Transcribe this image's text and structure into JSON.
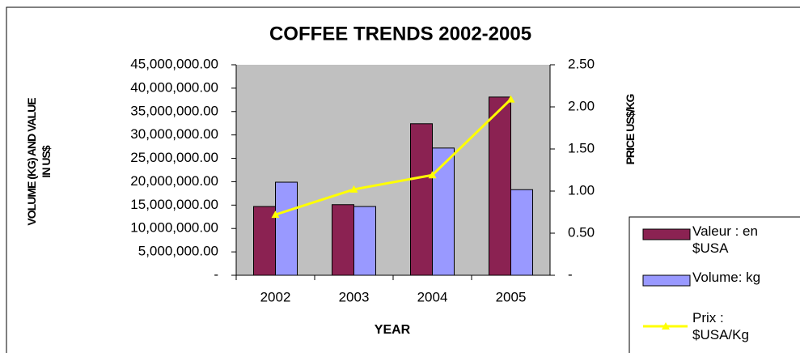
{
  "chart_data": {
    "type": "bar",
    "title": "COFFEE TRENDS 2002-2005",
    "x_label": "YEAR",
    "y_label": "VOLUME (KG) AND VALUE IN US$",
    "y2_label": "PRICE US$/KG",
    "categories": [
      "2002",
      "2003",
      "2004",
      "2005"
    ],
    "series": [
      {
        "name": "Valeur : en $USA",
        "type": "bar",
        "color": "#8b2252",
        "values": [
          14700000,
          15100000,
          32400000,
          38100000
        ]
      },
      {
        "name": "Volume: kg",
        "type": "bar",
        "color": "#9999ff",
        "values": [
          19900000,
          14700000,
          27200000,
          18300000
        ]
      },
      {
        "name": "Prix : $USA/Kg",
        "type": "line",
        "axis": "y2",
        "color": "#ffff00",
        "values": [
          0.72,
          1.02,
          1.19,
          2.09
        ]
      }
    ],
    "ylim": [
      0,
      45000000
    ],
    "yticks": [
      {
        "value": 0,
        "label": "-"
      },
      {
        "value": 5000000,
        "label": "5,000,000.00"
      },
      {
        "value": 10000000,
        "label": "10,000,000.00"
      },
      {
        "value": 15000000,
        "label": "15,000,000.00"
      },
      {
        "value": 20000000,
        "label": "20,000,000.00"
      },
      {
        "value": 25000000,
        "label": "25,000,000.00"
      },
      {
        "value": 30000000,
        "label": "30,000,000.00"
      },
      {
        "value": 35000000,
        "label": "35,000,000.00"
      },
      {
        "value": 40000000,
        "label": "40,000,000.00"
      },
      {
        "value": 45000000,
        "label": "45,000,000.00"
      }
    ],
    "y2lim": [
      0,
      2.5
    ],
    "y2ticks": [
      {
        "value": 0,
        "label": "-"
      },
      {
        "value": 0.5,
        "label": "0.50"
      },
      {
        "value": 1,
        "label": "1.00"
      },
      {
        "value": 1.5,
        "label": "1.50"
      },
      {
        "value": 2,
        "label": "2.00"
      },
      {
        "value": 2.5,
        "label": "2.50"
      }
    ],
    "plot_background": "#c0c0c0",
    "grid": false
  }
}
